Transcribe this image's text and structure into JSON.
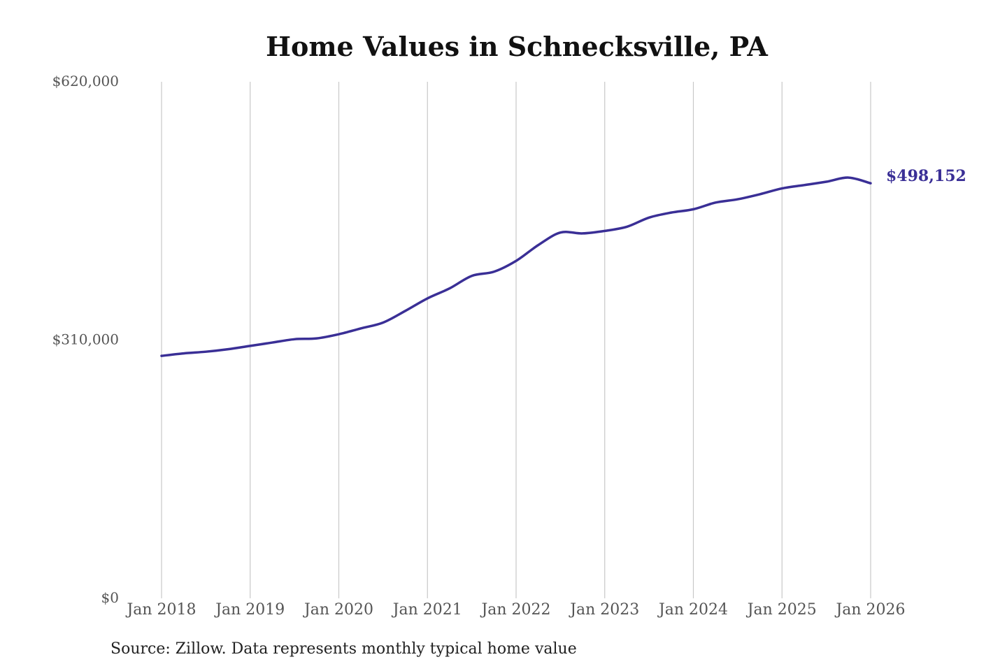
{
  "chart_data": {
    "type": "line",
    "title": "Home Values in Schnecksville, PA",
    "xlabel": "",
    "ylabel": "",
    "x_tick_labels": [
      "Jan 2018",
      "Jan 2019",
      "Jan 2020",
      "Jan 2021",
      "Jan 2022",
      "Jan 2023",
      "Jan 2024",
      "Jan 2025",
      "Jan 2026"
    ],
    "y_tick_labels": [
      "$620,000",
      "$310,000",
      "$0"
    ],
    "y_tick_values": [
      620000,
      310000,
      0
    ],
    "ylim": [
      0,
      620000
    ],
    "xlim": [
      "2018-01",
      "2026-01"
    ],
    "grid": {
      "vertical": true,
      "horizontal": false
    },
    "line_color": "#3a2f96",
    "end_label": "$498,152",
    "series": [
      {
        "x": [
          "2018-01",
          "2018-04",
          "2018-07",
          "2018-10",
          "2019-01",
          "2019-04",
          "2019-07",
          "2019-10",
          "2020-01",
          "2020-04",
          "2020-07",
          "2020-10",
          "2021-01",
          "2021-04",
          "2021-07",
          "2021-10",
          "2022-01",
          "2022-04",
          "2022-07",
          "2022-10",
          "2023-01",
          "2023-04",
          "2023-07",
          "2023-10",
          "2024-01",
          "2024-04",
          "2024-07",
          "2024-10",
          "2025-01",
          "2025-04",
          "2025-07",
          "2025-10",
          "2026-01"
        ],
        "y": [
          291000,
          294000,
          296000,
          299000,
          303000,
          307000,
          311000,
          312000,
          317000,
          324000,
          331000,
          345000,
          360000,
          372000,
          387000,
          392000,
          405000,
          424000,
          439000,
          438000,
          441000,
          446000,
          457000,
          463000,
          467000,
          475000,
          479000,
          485000,
          492000,
          496000,
          500000,
          505000,
          498152
        ]
      }
    ]
  },
  "source_note": "Source: Zillow. Data represents monthly typical home value"
}
